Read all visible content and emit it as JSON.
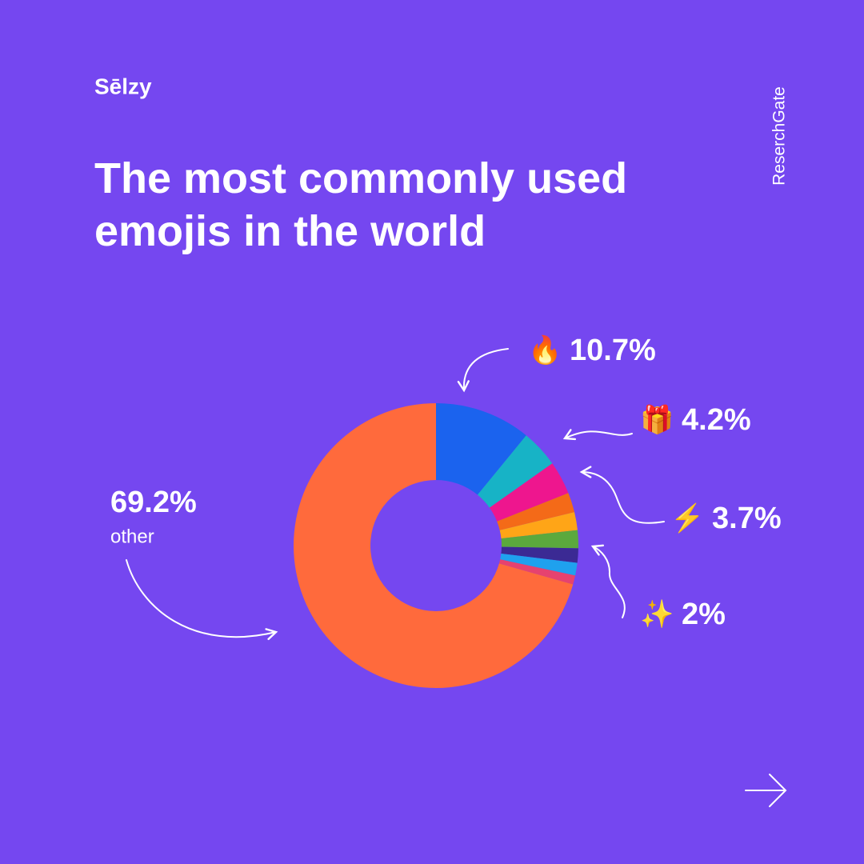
{
  "brand": "Sēlzy",
  "source": "ReserchGate",
  "chart_data": {
    "type": "pie",
    "donut": true,
    "title": "The most commonly used emojis in the world",
    "categories": [
      "🔥",
      "🎁",
      "⚡",
      null,
      null,
      "✨",
      null,
      null,
      null,
      "other"
    ],
    "values": [
      10.7,
      4.2,
      3.7,
      2.2,
      2.0,
      2,
      1.6,
      1.4,
      1.0,
      69.2
    ],
    "value_labels": [
      "10.7%",
      "4.2%",
      "3.7%",
      null,
      null,
      "2%",
      null,
      null,
      null,
      "69.2%"
    ],
    "colors": [
      "#1b63ee",
      "#17b3c6",
      "#ee168e",
      "#f46a18",
      "#ffa517",
      "#5ba93d",
      "#3b2a94",
      "#1fa1ee",
      "#e6426f",
      "#ff6a3c"
    ]
  }
}
